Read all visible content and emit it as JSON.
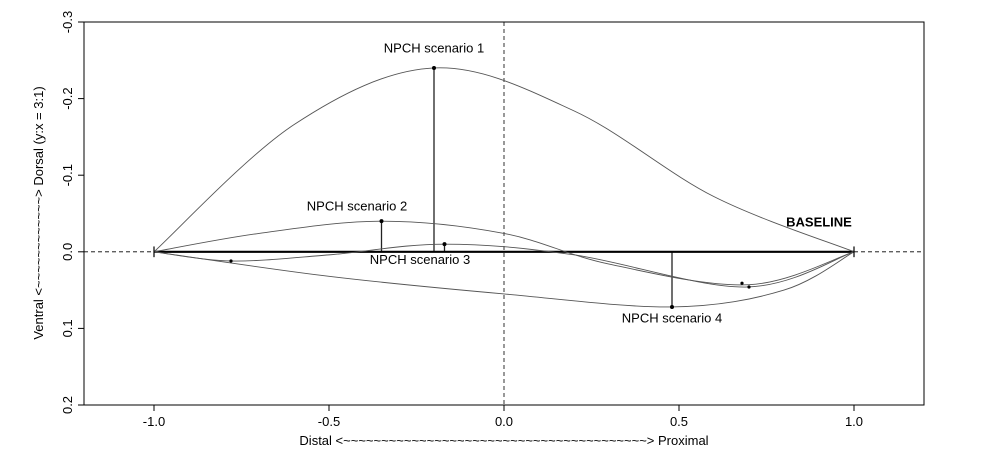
{
  "chart_data": {
    "type": "line",
    "xlabel": "Distal <~~~~~~~~~~~~~~~~~~~~~~~~~~~~~~~~~~~~~~~~> Proximal",
    "ylabel": "Ventral <~~~~~~~~~~~~> Dorsal (y:x = 3:1)",
    "xlim": [
      -1.2,
      1.2
    ],
    "ylim": [
      -0.3,
      0.2
    ],
    "y_axis_reversed": true,
    "xticks": [
      -1.0,
      -0.5,
      0.0,
      0.5,
      1.0
    ],
    "xtick_labels": [
      "-1.0",
      "-0.5",
      "0.0",
      "0.5",
      "1.0"
    ],
    "yticks": [
      -0.3,
      -0.2,
      -0.1,
      0.0,
      0.1,
      0.2
    ],
    "ytick_labels": [
      "-0.3",
      "-0.2",
      "-0.1",
      "0.0",
      "0.1",
      "0.2"
    ],
    "grid": false,
    "reference_lines": {
      "x": 0.0,
      "y": 0.0
    },
    "series": [
      {
        "name": "BASELINE",
        "x": [
          -1.0,
          1.0
        ],
        "y": [
          0.0,
          0.0
        ]
      },
      {
        "name": "NPCH scenario 1",
        "x": [
          -1.0,
          -0.6,
          -0.2,
          0.2,
          0.6,
          1.0
        ],
        "y": [
          0.0,
          -0.166,
          -0.24,
          -0.184,
          -0.072,
          0.0
        ],
        "marker": {
          "x": -0.2,
          "y": -0.24
        }
      },
      {
        "name": "NPCH scenario 2",
        "x": [
          -1.0,
          -0.7,
          -0.35,
          0.0,
          0.3,
          0.7,
          1.0
        ],
        "y": [
          0.0,
          -0.024,
          -0.04,
          -0.024,
          0.016,
          0.043,
          0.0
        ],
        "marker": {
          "x": -0.35,
          "y": -0.04
        }
      },
      {
        "name": "NPCH scenario 3",
        "x": [
          -1.0,
          -0.78,
          -0.5,
          -0.17,
          0.2,
          0.69,
          1.0
        ],
        "y": [
          0.0,
          0.012,
          0.004,
          -0.01,
          0.004,
          0.046,
          0.0
        ],
        "marker": {
          "x": -0.17,
          "y": -0.01
        }
      },
      {
        "name": "NPCH scenario 4",
        "x": [
          -1.0,
          -0.5,
          0.0,
          0.48,
          0.8,
          1.0
        ],
        "y": [
          0.0,
          0.032,
          0.055,
          0.072,
          0.05,
          0.0
        ],
        "marker": {
          "x": 0.48,
          "y": 0.072
        }
      }
    ],
    "small_points": [
      {
        "x": -0.78,
        "y": 0.012
      },
      {
        "x": 0.68,
        "y": 0.041
      },
      {
        "x": 0.7,
        "y": 0.046
      }
    ],
    "annotations": [
      {
        "text": "NPCH scenario 1",
        "x": -0.2,
        "y": -0.26,
        "bold": false
      },
      {
        "text": "NPCH scenario 2",
        "x": -0.42,
        "y": -0.054,
        "bold": false
      },
      {
        "text": "NPCH scenario 3",
        "x": -0.24,
        "y": 0.016,
        "bold": false
      },
      {
        "text": "NPCH scenario 4",
        "x": 0.48,
        "y": 0.092,
        "bold": false
      },
      {
        "text": "BASELINE",
        "x": 0.9,
        "y": -0.033,
        "bold": true
      }
    ]
  }
}
